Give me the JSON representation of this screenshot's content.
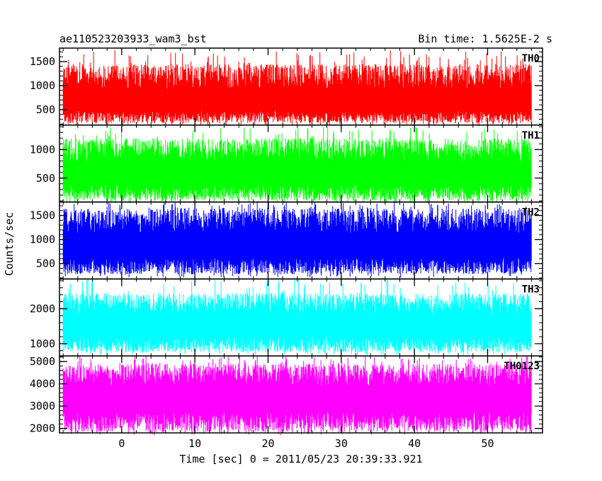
{
  "chart_data": {
    "type": "line",
    "header": {
      "left_title": "ae110523203933_wam3_bst",
      "right_title": "Bin time: 1.5625E-2 s"
    },
    "xlabel": "Time [sec] 0 = 2011/05/23 20:39:33.921",
    "ylabel": "Counts/sec",
    "xlim": [
      -8.5,
      57.5
    ],
    "x_data_range": [
      -8,
      56
    ],
    "x_ticks": [
      0,
      10,
      20,
      30,
      40,
      50
    ],
    "x_minor_step": 2,
    "grid": false,
    "panels": [
      {
        "name": "TH0",
        "color": "#ff0000",
        "ylim": [
          180,
          1780
        ],
        "y_ticks": [
          500,
          1000,
          1500
        ],
        "y_minor_step": 100,
        "mean": 650,
        "low": 220,
        "high": 1450,
        "max": 1750
      },
      {
        "name": "TH1",
        "color": "#00ff00",
        "ylim": [
          80,
          1430
        ],
        "y_ticks": [
          500,
          1000
        ],
        "y_minor_step": 100,
        "mean": 560,
        "low": 110,
        "high": 1200,
        "max": 1400
      },
      {
        "name": "TH2",
        "color": "#0000ff",
        "ylim": [
          180,
          1780
        ],
        "y_ticks": [
          500,
          1000,
          1500
        ],
        "y_minor_step": 100,
        "mean": 850,
        "low": 280,
        "high": 1650,
        "max": 1780
      },
      {
        "name": "TH3",
        "color": "#00ffff",
        "ylim": [
          650,
          2850
        ],
        "y_ticks": [
          1000,
          2000
        ],
        "y_minor_step": 200,
        "mean": 1500,
        "low": 760,
        "high": 2450,
        "max": 2850
      },
      {
        "name": "TH0123",
        "color": "#ff00ff",
        "ylim": [
          1800,
          5250
        ],
        "y_ticks": [
          2000,
          3000,
          4000,
          5000
        ],
        "y_minor_step": 200,
        "mean": 3350,
        "low": 1850,
        "high": 4900,
        "max": 5250
      }
    ]
  }
}
